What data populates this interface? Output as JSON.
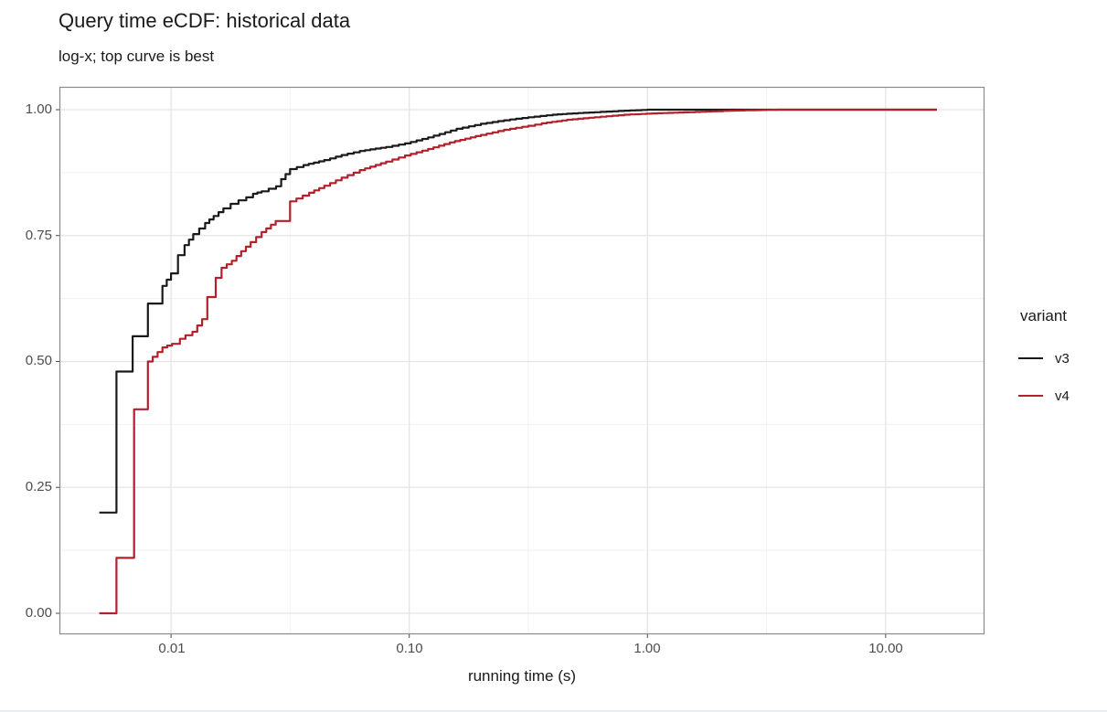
{
  "title": "Query time eCDF: historical data",
  "subtitle": "log-x; top curve is best",
  "x_axis": {
    "label": "running time (s)",
    "scale": "log10",
    "tick_labels": [
      "0.01",
      "0.10",
      "1.00",
      "10.00"
    ],
    "tick_values": [
      0.01,
      0.1,
      1,
      10
    ],
    "minor_values": [
      0.0316,
      0.316,
      3.16
    ],
    "range": [
      0.0034,
      26
    ]
  },
  "y_axis": {
    "label": "",
    "tick_labels": [
      "0.00",
      "0.25",
      "0.50",
      "0.75",
      "1.00"
    ],
    "tick_values": [
      0,
      0.25,
      0.5,
      0.75,
      1
    ],
    "minor_values": [
      0.125,
      0.375,
      0.625,
      0.875
    ],
    "range": [
      -0.042,
      1.045
    ]
  },
  "legend": {
    "title": "variant",
    "items": [
      {
        "label": "v3",
        "color": "#1a1a1a"
      },
      {
        "label": "v4",
        "color": "#b2202b"
      }
    ]
  },
  "colors": {
    "grid_major": "#e4e4e4",
    "grid_minor": "#f0f0f0",
    "panel_border": "#8a8a8a",
    "tick_mark": "#4a4a4a"
  },
  "chart_data": {
    "type": "line",
    "subtype": "ecdf-step",
    "title": "Query time eCDF: historical data",
    "xlabel": "running time (s)",
    "ylabel": "",
    "xlim_log": [
      0.0034,
      26
    ],
    "ylim": [
      -0.042,
      1.045
    ],
    "grid": "on",
    "legend_position": "right",
    "series": [
      {
        "name": "v3",
        "color": "#1a1a1a",
        "points": [
          [
            0.005,
            0.2
          ],
          [
            0.0059,
            0.48
          ],
          [
            0.0069,
            0.55
          ],
          [
            0.008,
            0.615
          ],
          [
            0.0092,
            0.65
          ],
          [
            0.01,
            0.675
          ],
          [
            0.0107,
            0.711
          ],
          [
            0.0114,
            0.731
          ],
          [
            0.0124,
            0.753
          ],
          [
            0.0139,
            0.775
          ],
          [
            0.0151,
            0.789
          ],
          [
            0.0166,
            0.804
          ],
          [
            0.0178,
            0.813
          ],
          [
            0.0192,
            0.82
          ],
          [
            0.0207,
            0.826
          ],
          [
            0.0221,
            0.833
          ],
          [
            0.024,
            0.838
          ],
          [
            0.0257,
            0.843
          ],
          [
            0.0276,
            0.848
          ],
          [
            0.029,
            0.862
          ],
          [
            0.0316,
            0.882
          ],
          [
            0.036,
            0.89
          ],
          [
            0.044,
            0.9
          ],
          [
            0.052,
            0.91
          ],
          [
            0.062,
            0.918
          ],
          [
            0.08,
            0.926
          ],
          [
            0.096,
            0.933
          ],
          [
            0.12,
            0.945
          ],
          [
            0.158,
            0.962
          ],
          [
            0.2,
            0.972
          ],
          [
            0.25,
            0.979
          ],
          [
            0.316,
            0.985
          ],
          [
            0.4,
            0.99
          ],
          [
            0.46,
            0.992
          ],
          [
            0.6,
            0.995
          ],
          [
            0.8,
            0.998
          ],
          [
            1.0,
            1.0
          ],
          [
            16.4,
            1.0
          ]
        ]
      },
      {
        "name": "v4",
        "color": "#b2202b",
        "points": [
          [
            0.005,
            0.0
          ],
          [
            0.0059,
            0.11
          ],
          [
            0.007,
            0.405
          ],
          [
            0.008,
            0.5
          ],
          [
            0.0092,
            0.528
          ],
          [
            0.0101,
            0.535
          ],
          [
            0.0109,
            0.545
          ],
          [
            0.0115,
            0.552
          ],
          [
            0.0123,
            0.559
          ],
          [
            0.0135,
            0.584
          ],
          [
            0.0142,
            0.628
          ],
          [
            0.0154,
            0.666
          ],
          [
            0.0163,
            0.686
          ],
          [
            0.018,
            0.7
          ],
          [
            0.0197,
            0.719
          ],
          [
            0.0216,
            0.737
          ],
          [
            0.024,
            0.757
          ],
          [
            0.0275,
            0.779
          ],
          [
            0.0316,
            0.818
          ],
          [
            0.038,
            0.835
          ],
          [
            0.044,
            0.849
          ],
          [
            0.052,
            0.865
          ],
          [
            0.062,
            0.88
          ],
          [
            0.08,
            0.897
          ],
          [
            0.096,
            0.909
          ],
          [
            0.12,
            0.922
          ],
          [
            0.148,
            0.935
          ],
          [
            0.2,
            0.95
          ],
          [
            0.25,
            0.96
          ],
          [
            0.316,
            0.968
          ],
          [
            0.36,
            0.973
          ],
          [
            0.46,
            0.98
          ],
          [
            0.6,
            0.985
          ],
          [
            0.8,
            0.99
          ],
          [
            1.1,
            0.993
          ],
          [
            1.5,
            0.995
          ],
          [
            2.2,
            0.998
          ],
          [
            3.5,
            1.0
          ],
          [
            16.4,
            1.0
          ]
        ]
      }
    ]
  }
}
